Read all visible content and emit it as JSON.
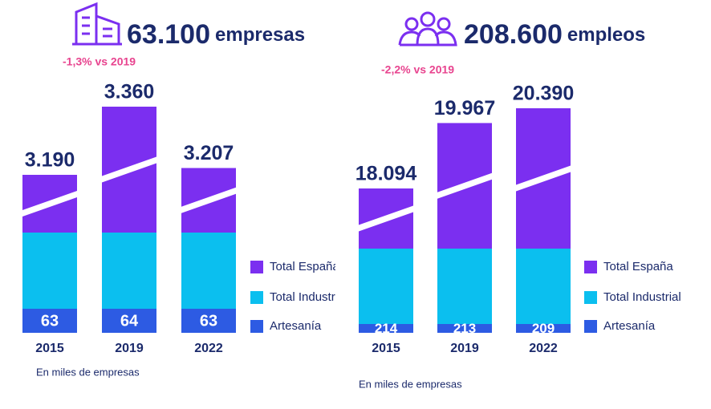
{
  "chart_data": [
    {
      "type": "bar",
      "stacked": true,
      "title": "63.100",
      "title_unit": "empresas",
      "subtitle": "-1,3% vs 2019",
      "note": "En miles de empresas",
      "categories": [
        "2015",
        "2019",
        "2022"
      ],
      "series": [
        {
          "name": "Total España",
          "color": "#7b2ff0",
          "values": [
            3190,
            3360,
            3207
          ],
          "value_labels": [
            "3.190",
            "3.360",
            "3.207"
          ]
        },
        {
          "name": "Total Industrial",
          "color": "#0bbfef",
          "values": [
            null,
            null,
            null
          ]
        },
        {
          "name": "Artesanía",
          "color": "#2d5be3",
          "values": [
            63,
            64,
            63
          ]
        }
      ]
    },
    {
      "type": "bar",
      "stacked": true,
      "title": "208.600",
      "title_unit": "empleos",
      "subtitle": "-2,2% vs 2019",
      "note": "En miles de empresas",
      "categories": [
        "2015",
        "2019",
        "2022"
      ],
      "series": [
        {
          "name": "Total España",
          "color": "#7b2ff0",
          "values": [
            18094,
            19967,
            20390
          ],
          "value_labels": [
            "18.094",
            "19.967",
            "20.390"
          ]
        },
        {
          "name": "Total Industrial",
          "color": "#0bbfef",
          "values": [
            null,
            null,
            null
          ]
        },
        {
          "name": "Artesanía",
          "color": "#2d5be3",
          "values": [
            214,
            213,
            209
          ]
        }
      ]
    }
  ]
}
